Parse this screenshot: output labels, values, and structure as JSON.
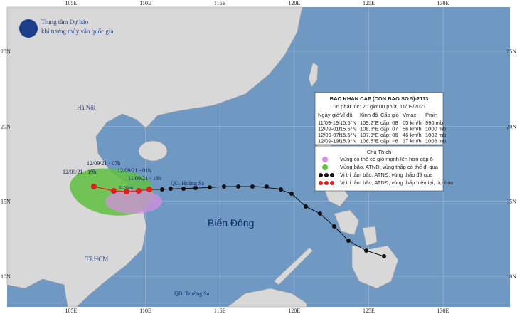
{
  "header": {
    "line1": "Trung tâm Dự báo",
    "line2": "khí tượng thủy văn quốc gia"
  },
  "axes": {
    "lon_top": [
      "105E",
      "110E",
      "115E",
      "120E",
      "125E",
      "130E"
    ],
    "lon_bottom": [
      "105E",
      "110E",
      "115E",
      "120E",
      "125E",
      "130E"
    ],
    "lat_left": [
      "25N",
      "20N",
      "15N",
      "10N"
    ],
    "lat_right": [
      "25N",
      "20N",
      "15N",
      "10N"
    ]
  },
  "places": {
    "hanoi": "Hà Nội",
    "hcm": "TP.HCM",
    "sea": "Biển Đông",
    "paracel": "QĐ. Hoàng Sa",
    "spratly": "QĐ. Trường Sa",
    "danang": "Đ.Nẵng"
  },
  "track_labels": [
    "12/09/21 - 19h",
    "12/09/21 - 07h",
    "12/09/21 - 01h",
    "11/09/21 - 19h"
  ],
  "bulletin": {
    "title": "BAO KHAN CAP (CON BAO SO 5)-2113",
    "issued": "Tin phát lúc: 20 giờ 00 phút, 11/09/2021",
    "columns": [
      "Ngày-giờ",
      "Vĩ độ",
      "Kinh độ",
      "Cấp gió",
      "Vmax",
      "Pmin"
    ],
    "rows": [
      [
        "11/09-19h",
        "15.5°N",
        "109.2°E",
        "cấp: 08",
        "65 km/h",
        "996 mb"
      ],
      [
        "12/09-01h",
        "15.5°N",
        "108.6°E",
        "cấp: 07",
        "56 km/h",
        "1000 mb"
      ],
      [
        "12/09-07h",
        "15.5°N",
        "107.9°E",
        "cấp: 06",
        "46 km/h",
        "1002 mb"
      ],
      [
        "12/09-19h",
        "15.9°N",
        "106.5°E",
        "cấp: <6",
        "37 km/h",
        "1006 mb"
      ]
    ]
  },
  "legend": {
    "title": "Chú Thích",
    "items": [
      "Vùng có thể có gió mạnh lên hơn cấp 6",
      "Vùng bão, ATNĐ, vùng thấp có thể đi qua",
      "Vị trí tâm bão, ATNĐ, vùng thấp đã qua",
      "Vị trí tâm bão, ATNĐ, vùng thấp hiện tại, dự báo"
    ]
  }
}
